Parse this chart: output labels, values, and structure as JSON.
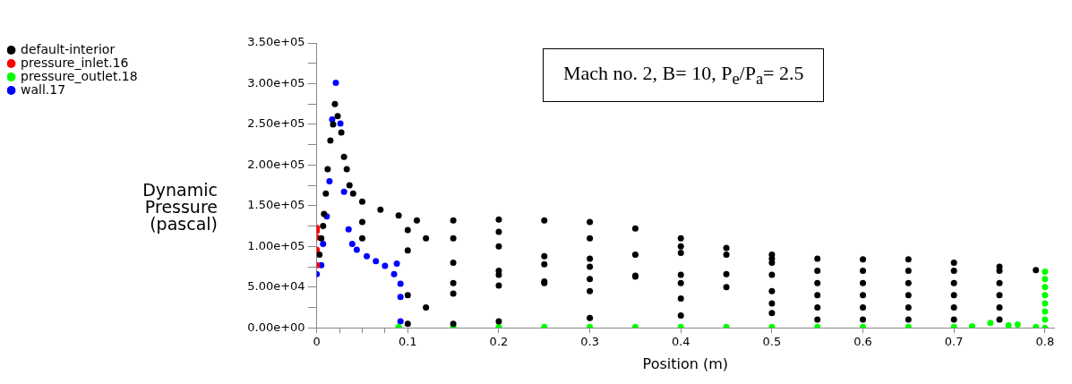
{
  "chart_data": {
    "type": "scatter",
    "xlabel": "Position (m)",
    "ylabel": "Dynamic Pressure (pascal)",
    "annotations": [
      "Mach no. 2, B= 10, P$_{e}$/P$_{a}$= 2.5"
    ],
    "xlim": [
      0,
      0.81
    ],
    "xticks": [
      0,
      {
        "value": 0.025,
        "label": null
      },
      {
        "value": 0.05,
        "label": null
      },
      {
        "value": 0.075,
        "label": null
      },
      0.1,
      0.2,
      0.3,
      0.4,
      0.5,
      0.6,
      0.7,
      0.8
    ],
    "ylim": [
      0,
      350000
    ],
    "yticks": [
      {
        "value": 0,
        "label": "0.00e+00"
      },
      {
        "value": 25000,
        "label": null
      },
      {
        "value": 50000,
        "label": "5.00e+04"
      },
      {
        "value": 75000,
        "label": null
      },
      {
        "value": 100000,
        "label": "1.00e+05"
      },
      {
        "value": 125000,
        "label": null
      },
      {
        "value": 150000,
        "label": "1.50e+05"
      },
      {
        "value": 175000,
        "label": null
      },
      {
        "value": 200000,
        "label": "2.00e+05"
      },
      {
        "value": 225000,
        "label": null
      },
      {
        "value": 250000,
        "label": "2.50e+05"
      },
      {
        "value": 275000,
        "label": null
      },
      {
        "value": 300000,
        "label": "3.00e+05"
      },
      {
        "value": 325000,
        "label": null
      },
      {
        "value": 350000,
        "label": "3.50e+05"
      }
    ],
    "grid": false,
    "legend": "top left",
    "marker": "circle",
    "series": [
      {
        "name": "default-interior",
        "color": "#000000",
        "x": [
          0.003,
          0.005,
          0.007,
          0.008,
          0.01,
          0.012,
          0.015,
          0.018,
          0.02,
          0.023,
          0.027,
          0.03,
          0.033,
          0.036,
          0.04,
          0.05,
          0.07,
          0.09,
          0.11,
          0.15,
          0.2,
          0.25,
          0.3,
          0.35,
          0.4,
          0.45,
          0.5,
          0.55,
          0.6,
          0.65,
          0.7,
          0.75,
          0.79,
          0.05,
          0.1,
          0.15,
          0.2,
          0.25,
          0.3,
          0.35,
          0.4,
          0.45,
          0.5,
          0.05,
          0.1,
          0.15,
          0.2,
          0.25,
          0.3,
          0.4,
          0.5,
          0.1,
          0.15,
          0.2,
          0.25,
          0.3,
          0.35,
          0.4,
          0.45,
          0.5,
          0.1,
          0.12,
          0.15,
          0.2,
          0.25,
          0.3,
          0.35,
          0.4,
          0.45,
          0.5,
          0.12,
          0.2,
          0.3,
          0.4,
          0.5,
          0.15,
          0.2,
          0.3,
          0.4,
          0.5,
          0.55,
          0.55,
          0.55,
          0.55,
          0.55,
          0.6,
          0.6,
          0.6,
          0.6,
          0.6,
          0.65,
          0.65,
          0.65,
          0.65,
          0.65,
          0.7,
          0.7,
          0.7,
          0.7,
          0.7,
          0.75,
          0.75,
          0.75,
          0.75,
          0.75
        ],
        "values": [
          90000,
          110000,
          125000,
          140000,
          165000,
          195000,
          230000,
          250000,
          275000,
          260000,
          240000,
          210000,
          195000,
          175000,
          165000,
          155000,
          145000,
          138000,
          132000,
          132000,
          133000,
          132000,
          130000,
          122000,
          110000,
          98000,
          90000,
          85000,
          84000,
          84000,
          80000,
          75000,
          71000,
          130000,
          120000,
          110000,
          100000,
          88000,
          75000,
          64000,
          55000,
          50000,
          45000,
          110000,
          95000,
          80000,
          65000,
          55000,
          45000,
          36000,
          30000,
          40000,
          55000,
          70000,
          78000,
          85000,
          90000,
          92000,
          90000,
          85000,
          5000,
          25000,
          42000,
          52000,
          57000,
          60000,
          63000,
          65000,
          66000,
          65000,
          110000,
          118000,
          110000,
          100000,
          80000,
          5000,
          8000,
          12000,
          15000,
          18000,
          10000,
          25000,
          40000,
          55000,
          70000,
          10000,
          25000,
          40000,
          55000,
          70000,
          10000,
          25000,
          40000,
          55000,
          70000,
          10000,
          25000,
          40000,
          55000,
          70000,
          10000,
          25000,
          40000,
          55000,
          70000
        ]
      },
      {
        "name": "pressure_inlet.16",
        "color": "#ff0000",
        "x": [
          0,
          0,
          0,
          0,
          0
        ],
        "values": [
          123000,
          119000,
          111000,
          96000,
          77000
        ]
      },
      {
        "name": "pressure_outlet.18",
        "color": "#00ff00",
        "x": [
          0.09,
          0.15,
          0.2,
          0.25,
          0.3,
          0.35,
          0.4,
          0.45,
          0.5,
          0.55,
          0.6,
          0.65,
          0.7,
          0.72,
          0.74,
          0.76,
          0.77,
          0.79,
          0.8,
          0.8,
          0.8,
          0.8,
          0.8,
          0.8,
          0.8,
          0.8
        ],
        "values": [
          1000,
          1000,
          1000,
          1000,
          1000,
          1000,
          1000,
          1000,
          1000,
          1000,
          1000,
          1000,
          1000,
          2000,
          6000,
          3000,
          4000,
          1000,
          0,
          10000,
          20000,
          30000,
          40000,
          50000,
          60000,
          69000
        ]
      },
      {
        "name": "wall.17",
        "color": "#0000ff",
        "x": [
          0,
          0.005,
          0.007,
          0.011,
          0.014,
          0.017,
          0.021,
          0.026,
          0.03,
          0.035,
          0.039,
          0.044,
          0.055,
          0.065,
          0.075,
          0.085,
          0.088,
          0.092,
          0.092,
          0.092
        ],
        "values": [
          66000,
          77000,
          103000,
          137000,
          180000,
          256000,
          301000,
          251000,
          167000,
          121000,
          103000,
          96000,
          88000,
          82000,
          76000,
          66000,
          79000,
          54000,
          38000,
          8000
        ]
      }
    ]
  }
}
